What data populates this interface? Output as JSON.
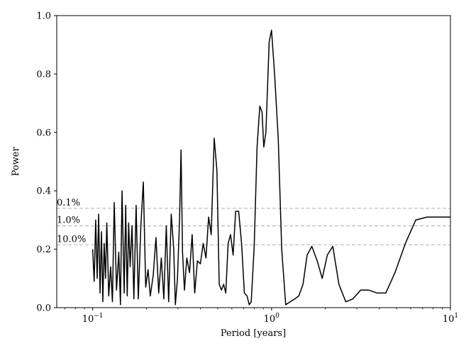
{
  "chart_data": {
    "type": "line",
    "xlabel": "Period [years]",
    "ylabel": "Power",
    "xscale": "log",
    "xlim": [
      0.063,
      10
    ],
    "ylim": [
      0,
      1.0
    ],
    "grid": false,
    "x_ticks": [
      {
        "value": 0.1,
        "base": "10",
        "exp": "−1"
      },
      {
        "value": 1,
        "base": "10",
        "exp": "0"
      },
      {
        "value": 10,
        "base": "10",
        "exp": "1"
      }
    ],
    "y_ticks": [
      "0.0",
      "0.2",
      "0.4",
      "0.6",
      "0.8",
      "1.0"
    ],
    "fap_levels": [
      {
        "label": "0.1%",
        "value": 0.34
      },
      {
        "label": "1.0%",
        "value": 0.28
      },
      {
        "label": "10.0%",
        "value": 0.215
      }
    ],
    "series": [
      {
        "color": "#000000",
        "points": [
          [
            0.1,
            0.2
          ],
          [
            0.102,
            0.09
          ],
          [
            0.104,
            0.3
          ],
          [
            0.106,
            0.1
          ],
          [
            0.108,
            0.32
          ],
          [
            0.11,
            0.05
          ],
          [
            0.112,
            0.26
          ],
          [
            0.114,
            0.02
          ],
          [
            0.116,
            0.22
          ],
          [
            0.118,
            0.1
          ],
          [
            0.12,
            0.29
          ],
          [
            0.123,
            0.04
          ],
          [
            0.126,
            0.14
          ],
          [
            0.129,
            0.02
          ],
          [
            0.132,
            0.36
          ],
          [
            0.136,
            0.06
          ],
          [
            0.14,
            0.19
          ],
          [
            0.143,
            0.01
          ],
          [
            0.146,
            0.4
          ],
          [
            0.15,
            0.05
          ],
          [
            0.153,
            0.35
          ],
          [
            0.156,
            0.04
          ],
          [
            0.159,
            0.29
          ],
          [
            0.162,
            0.14
          ],
          [
            0.166,
            0.28
          ],
          [
            0.17,
            0.03
          ],
          [
            0.175,
            0.35
          ],
          [
            0.18,
            0.03
          ],
          [
            0.186,
            0.28
          ],
          [
            0.192,
            0.43
          ],
          [
            0.198,
            0.07
          ],
          [
            0.204,
            0.13
          ],
          [
            0.21,
            0.04
          ],
          [
            0.218,
            0.11
          ],
          [
            0.226,
            0.24
          ],
          [
            0.234,
            0.05
          ],
          [
            0.242,
            0.17
          ],
          [
            0.25,
            0.03
          ],
          [
            0.258,
            0.28
          ],
          [
            0.266,
            0.02
          ],
          [
            0.275,
            0.32
          ],
          [
            0.284,
            0.2
          ],
          [
            0.29,
            0.01
          ],
          [
            0.298,
            0.1
          ],
          [
            0.306,
            0.3
          ],
          [
            0.312,
            0.54
          ],
          [
            0.318,
            0.19
          ],
          [
            0.326,
            0.06
          ],
          [
            0.336,
            0.17
          ],
          [
            0.348,
            0.12
          ],
          [
            0.36,
            0.25
          ],
          [
            0.372,
            0.05
          ],
          [
            0.385,
            0.16
          ],
          [
            0.4,
            0.15
          ],
          [
            0.415,
            0.22
          ],
          [
            0.43,
            0.17
          ],
          [
            0.445,
            0.31
          ],
          [
            0.46,
            0.25
          ],
          [
            0.478,
            0.58
          ],
          [
            0.495,
            0.47
          ],
          [
            0.51,
            0.08
          ],
          [
            0.525,
            0.06
          ],
          [
            0.54,
            0.08
          ],
          [
            0.555,
            0.05
          ],
          [
            0.572,
            0.22
          ],
          [
            0.59,
            0.25
          ],
          [
            0.61,
            0.18
          ],
          [
            0.63,
            0.33
          ],
          [
            0.655,
            0.33
          ],
          [
            0.68,
            0.22
          ],
          [
            0.705,
            0.05
          ],
          [
            0.73,
            0.04
          ],
          [
            0.75,
            0.01
          ],
          [
            0.77,
            0.02
          ],
          [
            0.8,
            0.21
          ],
          [
            0.83,
            0.55
          ],
          [
            0.86,
            0.69
          ],
          [
            0.885,
            0.67
          ],
          [
            0.905,
            0.55
          ],
          [
            0.93,
            0.6
          ],
          [
            0.97,
            0.91
          ],
          [
            1.0,
            0.95
          ],
          [
            1.04,
            0.8
          ],
          [
            1.09,
            0.58
          ],
          [
            1.14,
            0.2
          ],
          [
            1.2,
            0.01
          ],
          [
            1.27,
            0.02
          ],
          [
            1.35,
            0.03
          ],
          [
            1.42,
            0.04
          ],
          [
            1.5,
            0.08
          ],
          [
            1.58,
            0.18
          ],
          [
            1.68,
            0.21
          ],
          [
            1.8,
            0.16
          ],
          [
            1.92,
            0.1
          ],
          [
            2.05,
            0.18
          ],
          [
            2.2,
            0.21
          ],
          [
            2.38,
            0.08
          ],
          [
            2.6,
            0.02
          ],
          [
            2.85,
            0.03
          ],
          [
            3.15,
            0.06
          ],
          [
            3.5,
            0.06
          ],
          [
            3.9,
            0.05
          ],
          [
            4.35,
            0.05
          ],
          [
            4.9,
            0.12
          ],
          [
            5.6,
            0.22
          ],
          [
            6.4,
            0.3
          ],
          [
            7.4,
            0.31
          ],
          [
            8.5,
            0.31
          ],
          [
            10.0,
            0.31
          ]
        ]
      }
    ]
  }
}
